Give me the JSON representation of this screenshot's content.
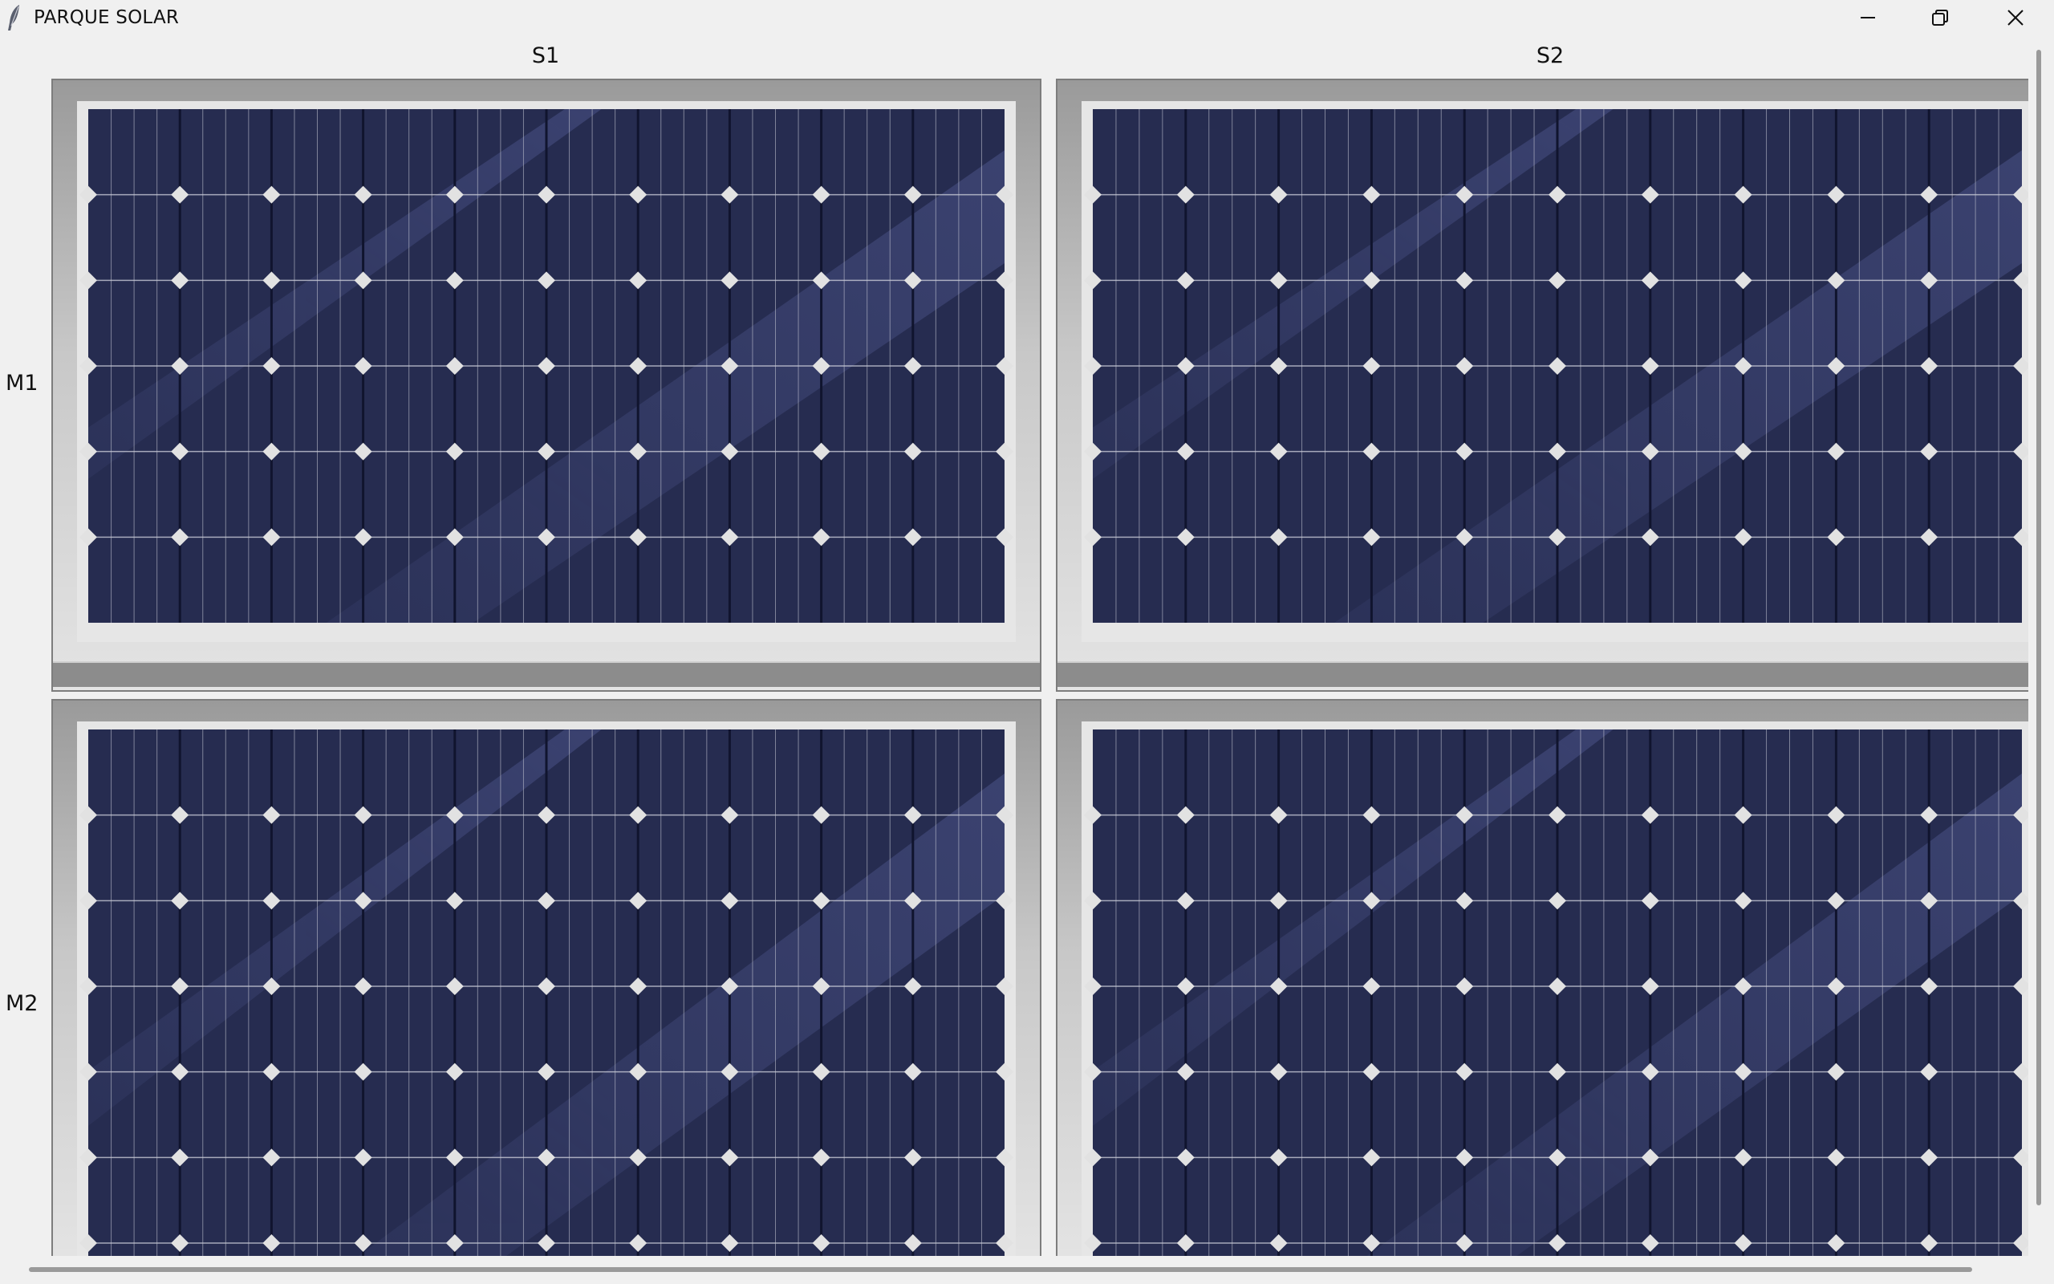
{
  "window": {
    "title": "PARQUE SOLAR",
    "icon": "feather-icon",
    "controls": {
      "minimize": "minimize-icon",
      "restore": "restore-icon",
      "close": "close-icon"
    }
  },
  "grid": {
    "columns": [
      {
        "label": "S1"
      },
      {
        "label": "S2"
      }
    ],
    "rows": [
      {
        "label": "M1"
      },
      {
        "label": "M2"
      }
    ]
  },
  "panel": {
    "cells_per_row": 10,
    "cell_rows": 6,
    "colors": {
      "frame_outer": "#8e8e8e",
      "frame_inner": "#e6e6e6",
      "cell": "#262c50",
      "cell_line": "#c8cad6",
      "node": "#e2e2e2",
      "glare": "#6a74b8"
    }
  }
}
